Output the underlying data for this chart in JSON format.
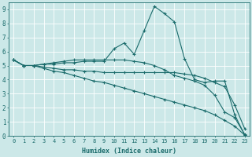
{
  "background_color": "#cce8e8",
  "grid_color": "#ffffff",
  "line_color": "#1a6b6b",
  "xlabel": "Humidex (Indice chaleur)",
  "xlim": [
    -0.5,
    23.5
  ],
  "ylim": [
    0,
    9.5
  ],
  "xticks": [
    0,
    1,
    2,
    3,
    4,
    5,
    6,
    7,
    8,
    9,
    10,
    11,
    12,
    13,
    14,
    15,
    16,
    17,
    18,
    19,
    20,
    21,
    22,
    23
  ],
  "yticks": [
    0,
    1,
    2,
    3,
    4,
    5,
    6,
    7,
    8,
    9
  ],
  "lines": [
    {
      "x": [
        0,
        1,
        2,
        3,
        4,
        5,
        6,
        7,
        8,
        9,
        10,
        11,
        12,
        13,
        14,
        15,
        16,
        17,
        18,
        19,
        20,
        21,
        22,
        23
      ],
      "y": [
        5.4,
        5.0,
        5.0,
        5.1,
        5.1,
        5.2,
        5.2,
        5.3,
        5.3,
        5.3,
        6.2,
        6.6,
        5.8,
        7.5,
        9.2,
        8.7,
        8.1,
        5.5,
        4.0,
        3.8,
        3.9,
        3.9,
        1.5,
        0.05
      ]
    },
    {
      "x": [
        0,
        1,
        2,
        3,
        4,
        5,
        6,
        7,
        8,
        9,
        10,
        11,
        12,
        13,
        14,
        15,
        16,
        17,
        18,
        19,
        20,
        21,
        22,
        23
      ],
      "y": [
        5.4,
        5.0,
        5.0,
        5.1,
        5.2,
        5.3,
        5.4,
        5.4,
        5.4,
        5.4,
        5.4,
        5.4,
        5.3,
        5.2,
        5.0,
        4.7,
        4.3,
        4.1,
        3.9,
        3.6,
        2.9,
        1.7,
        1.3,
        0.1
      ]
    },
    {
      "x": [
        0,
        1,
        2,
        3,
        4,
        5,
        6,
        7,
        8,
        9,
        10,
        11,
        12,
        13,
        14,
        15,
        16,
        17,
        18,
        19,
        20,
        21,
        22,
        23
      ],
      "y": [
        5.4,
        5.0,
        5.0,
        4.9,
        4.8,
        4.7,
        4.7,
        4.6,
        4.6,
        4.5,
        4.5,
        4.5,
        4.5,
        4.5,
        4.5,
        4.5,
        4.5,
        4.4,
        4.3,
        4.1,
        3.8,
        3.5,
        2.2,
        0.5
      ]
    },
    {
      "x": [
        0,
        1,
        2,
        3,
        4,
        5,
        6,
        7,
        8,
        9,
        10,
        11,
        12,
        13,
        14,
        15,
        16,
        17,
        18,
        19,
        20,
        21,
        22,
        23
      ],
      "y": [
        5.4,
        5.0,
        5.0,
        4.8,
        4.6,
        4.5,
        4.3,
        4.1,
        3.9,
        3.8,
        3.6,
        3.4,
        3.2,
        3.0,
        2.8,
        2.6,
        2.4,
        2.2,
        2.0,
        1.8,
        1.5,
        1.1,
        0.7,
        0.05
      ]
    }
  ],
  "marker": "+",
  "marker_size": 3.5,
  "linewidth": 0.8
}
